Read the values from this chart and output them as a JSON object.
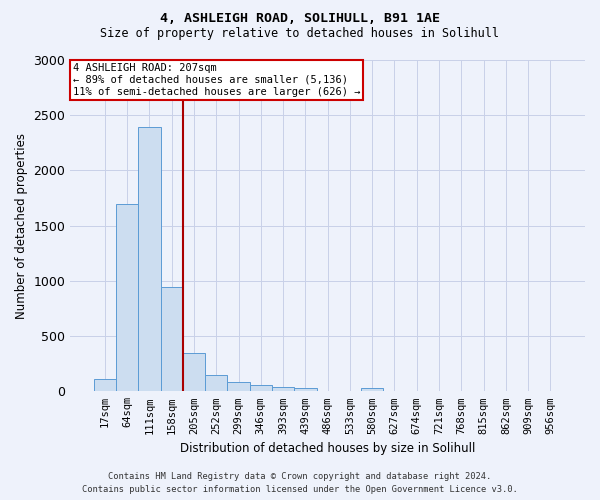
{
  "title1": "4, ASHLEIGH ROAD, SOLIHULL, B91 1AE",
  "title2": "Size of property relative to detached houses in Solihull",
  "xlabel": "Distribution of detached houses by size in Solihull",
  "ylabel": "Number of detached properties",
  "bar_labels": [
    "17sqm",
    "64sqm",
    "111sqm",
    "158sqm",
    "205sqm",
    "252sqm",
    "299sqm",
    "346sqm",
    "393sqm",
    "439sqm",
    "486sqm",
    "533sqm",
    "580sqm",
    "627sqm",
    "674sqm",
    "721sqm",
    "768sqm",
    "815sqm",
    "862sqm",
    "909sqm",
    "956sqm"
  ],
  "bar_values": [
    110,
    1700,
    2390,
    940,
    350,
    150,
    80,
    55,
    35,
    30,
    0,
    0,
    30,
    0,
    0,
    0,
    0,
    0,
    0,
    0,
    0
  ],
  "bar_color": "#ccddf0",
  "bar_edge_color": "#5b9bd5",
  "vline_x": 3.5,
  "vline_color": "#aa0000",
  "annotation_title": "4 ASHLEIGH ROAD: 207sqm",
  "annotation_line1": "← 89% of detached houses are smaller (5,136)",
  "annotation_line2": "11% of semi-detached houses are larger (626) →",
  "annotation_box_color": "white",
  "annotation_box_edge": "#cc0000",
  "ylim": [
    0,
    3000
  ],
  "yticks": [
    0,
    500,
    1000,
    1500,
    2000,
    2500,
    3000
  ],
  "footer1": "Contains HM Land Registry data © Crown copyright and database right 2024.",
  "footer2": "Contains public sector information licensed under the Open Government Licence v3.0.",
  "bg_color": "#eef2fb",
  "plot_bg_color": "#eef2fb",
  "grid_color": "#c8d0e8"
}
